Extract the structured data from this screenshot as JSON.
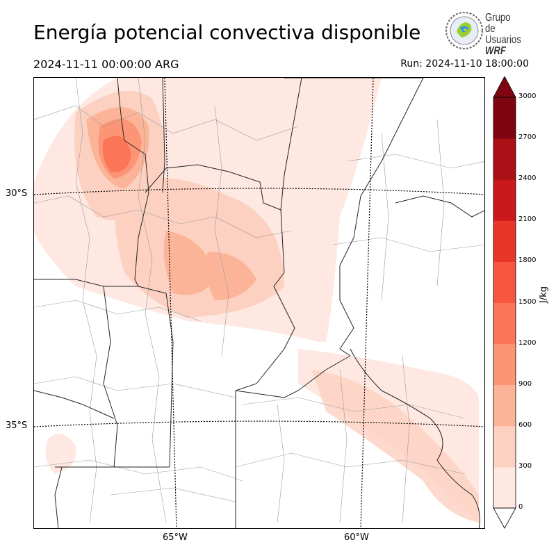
{
  "title": "Energía potencial convectiva disponible",
  "valid_time": "2024-11-11 00:00:00 ARG",
  "run_time": "Run: 2024-11-10 18:00:00",
  "logo": {
    "line1": "Grupo de",
    "line2": "Usuarios",
    "line3": "WRF"
  },
  "map": {
    "lat_labels": [
      "30°S",
      "35°S"
    ],
    "lon_labels": [
      "65°W",
      "60°W"
    ]
  },
  "colorbar": {
    "unit_label": "J/kg",
    "ticks": [
      "0",
      "300",
      "600",
      "900",
      "1200",
      "1500",
      "1800",
      "2100",
      "2400",
      "2700",
      "3000"
    ],
    "levels": [
      0,
      300,
      600,
      900,
      1200,
      1500,
      1800,
      2100,
      2400,
      2700,
      3000
    ],
    "colors": [
      "#fee8e1",
      "#fcd1c1",
      "#fcb499",
      "#fc9576",
      "#fb7656",
      "#f6573e",
      "#e83729",
      "#ca181d",
      "#ab1016",
      "#7f0610"
    ],
    "extend": "both"
  }
}
